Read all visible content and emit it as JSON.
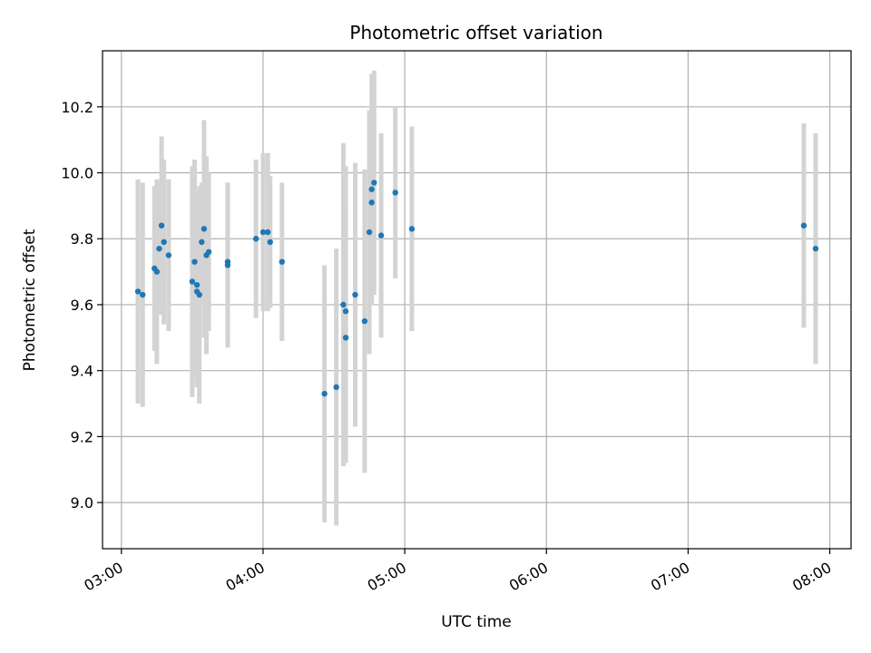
{
  "chart_data": {
    "type": "scatter",
    "title": "Photometric offset variation",
    "xlabel": "UTC time",
    "ylabel": "Photometric offset",
    "x_unit": "UTC time (HH:MM)",
    "xlim": [
      "02:52",
      "08:09"
    ],
    "ylim": [
      8.86,
      10.37
    ],
    "x_ticks": [
      "03:00",
      "04:00",
      "05:00",
      "06:00",
      "07:00",
      "08:00"
    ],
    "y_ticks": [
      "9.0",
      "9.2",
      "9.4",
      "9.6",
      "9.8",
      "10.0",
      "10.2"
    ],
    "grid": true,
    "marker_color": "#1f77b4",
    "errorbar_color": "#d3d3d3",
    "series": [
      {
        "points": [
          {
            "x": "03:07",
            "y": 9.64,
            "err": 0.34
          },
          {
            "x": "03:09",
            "y": 9.63,
            "err": 0.34
          },
          {
            "x": "03:14",
            "y": 9.71,
            "err": 0.25
          },
          {
            "x": "03:15",
            "y": 9.7,
            "err": 0.28
          },
          {
            "x": "03:16",
            "y": 9.77,
            "err": 0.2
          },
          {
            "x": "03:17",
            "y": 9.84,
            "err": 0.27
          },
          {
            "x": "03:18",
            "y": 9.79,
            "err": 0.25
          },
          {
            "x": "03:20",
            "y": 9.75,
            "err": 0.23
          },
          {
            "x": "03:30",
            "y": 9.67,
            "err": 0.35
          },
          {
            "x": "03:31",
            "y": 9.73,
            "err": 0.31
          },
          {
            "x": "03:32",
            "y": 9.64,
            "err": 0.29
          },
          {
            "x": "03:32",
            "y": 9.66,
            "err": 0.28
          },
          {
            "x": "03:33",
            "y": 9.63,
            "err": 0.33
          },
          {
            "x": "03:34",
            "y": 9.79,
            "err": 0.18
          },
          {
            "x": "03:35",
            "y": 9.83,
            "err": 0.33
          },
          {
            "x": "03:36",
            "y": 9.75,
            "err": 0.3
          },
          {
            "x": "03:37",
            "y": 9.76,
            "err": 0.24
          },
          {
            "x": "03:45",
            "y": 9.73,
            "err": 0.24
          },
          {
            "x": "03:45",
            "y": 9.72,
            "err": 0.25
          },
          {
            "x": "03:57",
            "y": 9.8,
            "err": 0.24
          },
          {
            "x": "04:00",
            "y": 9.82,
            "err": 0.24
          },
          {
            "x": "04:02",
            "y": 9.82,
            "err": 0.24
          },
          {
            "x": "04:03",
            "y": 9.79,
            "err": 0.2
          },
          {
            "x": "04:08",
            "y": 9.73,
            "err": 0.24
          },
          {
            "x": "04:26",
            "y": 9.33,
            "err": 0.39
          },
          {
            "x": "04:31",
            "y": 9.35,
            "err": 0.42
          },
          {
            "x": "04:34",
            "y": 9.6,
            "err": 0.49
          },
          {
            "x": "04:35",
            "y": 9.5,
            "err": 0.38
          },
          {
            "x": "04:35",
            "y": 9.58,
            "err": 0.44
          },
          {
            "x": "04:39",
            "y": 9.63,
            "err": 0.4
          },
          {
            "x": "04:43",
            "y": 9.55,
            "err": 0.46
          },
          {
            "x": "04:45",
            "y": 9.82,
            "err": 0.37
          },
          {
            "x": "04:46",
            "y": 9.91,
            "err": 0.28
          },
          {
            "x": "04:46",
            "y": 9.95,
            "err": 0.35
          },
          {
            "x": "04:47",
            "y": 9.97,
            "err": 0.34
          },
          {
            "x": "04:50",
            "y": 9.81,
            "err": 0.31
          },
          {
            "x": "04:56",
            "y": 9.94,
            "err": 0.26
          },
          {
            "x": "05:03",
            "y": 9.83,
            "err": 0.31
          },
          {
            "x": "07:49",
            "y": 9.84,
            "err": 0.31
          },
          {
            "x": "07:54",
            "y": 9.77,
            "err": 0.35
          }
        ]
      }
    ]
  }
}
